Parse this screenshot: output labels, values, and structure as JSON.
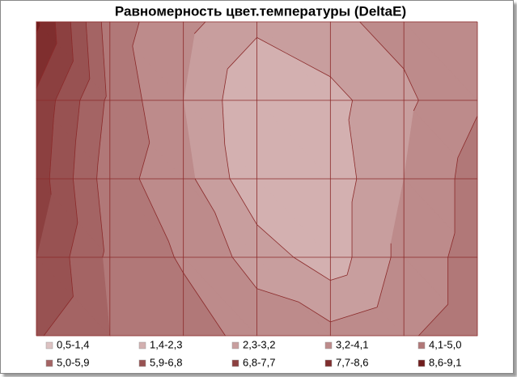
{
  "chart_data": {
    "type": "contour",
    "title": "Равномерность цвет.температуры (DeltaE)",
    "levels": [
      0.5,
      1.4,
      2.3,
      3.2,
      4.1,
      5.0,
      5.9,
      6.8,
      7.7,
      8.6,
      9.1
    ],
    "series": [
      {
        "name": "0,5-1,4",
        "color": "#dcc2c2"
      },
      {
        "name": "1,4-2,3",
        "color": "#d3b0b0"
      },
      {
        "name": "2,3-3,2",
        "color": "#c89e9e"
      },
      {
        "name": "3,2-4,1",
        "color": "#bd8b8b"
      },
      {
        "name": "4,1-5,0",
        "color": "#b17878"
      },
      {
        "name": "5,0-5,9",
        "color": "#a46464"
      },
      {
        "name": "5,9-6,8",
        "color": "#985252"
      },
      {
        "name": "6,8-7,7",
        "color": "#8c4040"
      },
      {
        "name": "7,7-8,6",
        "color": "#7f2e2e"
      },
      {
        "name": "8,6-9,1",
        "color": "#701e1e"
      }
    ],
    "z": [
      [
        8.8,
        4.5,
        3.5,
        2.5,
        3.0,
        3.5,
        4.0
      ],
      [
        7.5,
        4.8,
        3.2,
        1.5,
        2.0,
        3.0,
        4.0
      ],
      [
        7.3,
        4.5,
        3.5,
        1.6,
        1.8,
        3.2,
        4.5
      ],
      [
        6.8,
        4.8,
        4.0,
        2.8,
        1.8,
        3.5,
        4.5
      ],
      [
        6.0,
        5.0,
        4.5,
        3.8,
        3.5,
        4.0,
        4.5
      ]
    ],
    "grid": true,
    "grid_color": "#8b2a2a"
  }
}
